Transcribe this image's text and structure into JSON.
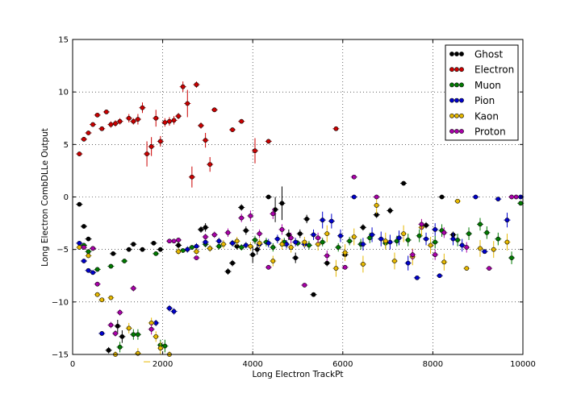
{
  "chart_data": {
    "type": "scatter",
    "title": "",
    "xlabel": "Long Electron TrackPt",
    "ylabel": "Long Electron CombDLLe Output",
    "xlim": [
      0,
      10000
    ],
    "ylim": [
      -15,
      15
    ],
    "xticks": [
      "0",
      "2000",
      "4000",
      "6000",
      "8000",
      "10000"
    ],
    "yticks": [
      "−15",
      "−10",
      "−5",
      "0",
      "5",
      "10",
      "15"
    ],
    "grid": true,
    "legend_position": "top-right",
    "series": [
      {
        "name": "Ghost",
        "color": "#000000",
        "x": [
          150,
          250,
          350,
          450,
          800,
          900,
          1000,
          1100,
          1250,
          1350,
          1550,
          1800,
          1950,
          2350,
          2850,
          2950,
          3050,
          3450,
          3550,
          3650,
          3750,
          3850,
          4000,
          4100,
          4350,
          4500,
          4650,
          4800,
          4950,
          5050,
          5200,
          5350,
          5650,
          6050,
          6450,
          6750,
          7050,
          7350,
          7850,
          8200,
          8450
        ],
        "y": [
          -0.7,
          -2.8,
          -4.0,
          -4.9,
          -14.6,
          -5.4,
          -12.3,
          -13.3,
          -5.0,
          -4.5,
          -5.0,
          -4.4,
          -5.0,
          -4.6,
          -3.1,
          -2.9,
          -4.9,
          -7.1,
          -6.3,
          -4.7,
          -1.0,
          -3.2,
          -5.5,
          -5.0,
          0.0,
          -1.2,
          -0.6,
          -3.6,
          -5.8,
          -3.5,
          -2.1,
          -9.3,
          -6.3,
          -5.5,
          -2.9,
          -1.7,
          -1.3,
          1.3,
          -2.7,
          0.0,
          -3.6
        ],
        "err": [
          0.15,
          0.2,
          0.2,
          0.2,
          0.3,
          0.2,
          0.6,
          0.6,
          0.2,
          0.2,
          0.2,
          0.2,
          0.2,
          0.3,
          0.3,
          0.4,
          0.3,
          0.3,
          0.3,
          0.3,
          0.3,
          0.4,
          0.8,
          0.5,
          0.2,
          1.2,
          1.6,
          0.5,
          0.5,
          0.4,
          0.4,
          0.2,
          0.3,
          0.3,
          0.3,
          0.3,
          0.3,
          0.2,
          0.3,
          0.2,
          0.3
        ]
      },
      {
        "name": "Electron",
        "color": "#cc0000",
        "x": [
          150,
          250,
          350,
          450,
          550,
          650,
          750,
          850,
          950,
          1050,
          1250,
          1350,
          1450,
          1550,
          1650,
          1750,
          1850,
          1950,
          2050,
          2150,
          2250,
          2350,
          2450,
          2550,
          2650,
          2750,
          2850,
          2950,
          3050,
          3150,
          3550,
          3750,
          4050,
          4350,
          5850
        ],
        "y": [
          4.1,
          5.5,
          6.1,
          6.9,
          7.8,
          6.5,
          8.1,
          6.9,
          7.0,
          7.2,
          7.5,
          7.2,
          7.4,
          8.5,
          4.1,
          4.8,
          7.5,
          5.3,
          7.1,
          7.2,
          7.3,
          7.7,
          10.5,
          8.9,
          1.9,
          10.7,
          6.8,
          5.4,
          3.1,
          8.3,
          6.4,
          7.2,
          4.4,
          5.3,
          6.5
        ],
        "err": [
          0.2,
          0.2,
          0.2,
          0.2,
          0.2,
          0.2,
          0.2,
          0.3,
          0.3,
          0.3,
          0.4,
          0.3,
          0.5,
          0.5,
          1.2,
          0.9,
          0.8,
          0.5,
          0.4,
          0.4,
          0.4,
          0.3,
          0.5,
          1.3,
          1.0,
          0.3,
          0.3,
          0.7,
          0.7,
          0.2,
          0.2,
          0.2,
          1.2,
          0.2,
          0.2
        ]
      },
      {
        "name": "Muon",
        "color": "#007a00",
        "x": [
          250,
          350,
          550,
          850,
          1050,
          1150,
          1350,
          1450,
          1850,
          1950,
          2050,
          2450,
          2650,
          2950,
          3250,
          3550,
          3750,
          4050,
          4300,
          4450,
          4700,
          5000,
          5250,
          5550,
          5900,
          6150,
          6400,
          6600,
          6950,
          7200,
          7450,
          7700,
          8050,
          8200,
          8550,
          8800,
          9050,
          9200,
          9450,
          9750,
          9950
        ],
        "y": [
          -4.6,
          -5.2,
          -6.9,
          -6.6,
          -14.3,
          -6.1,
          -13.1,
          -13.1,
          -5.4,
          -14.1,
          -14.2,
          -5.1,
          -4.8,
          -4.5,
          -4.7,
          -4.4,
          -4.8,
          -4.1,
          -4.3,
          -4.8,
          -4.3,
          -4.4,
          -4.6,
          -4.3,
          -4.8,
          -4.2,
          -4.5,
          -3.9,
          -4.4,
          -4.2,
          -4.1,
          -3.7,
          -4.3,
          -3.2,
          -4.1,
          -3.5,
          -2.6,
          -3.4,
          -4.0,
          -5.8,
          -0.6
        ],
        "err": [
          0.2,
          0.2,
          0.2,
          0.2,
          0.5,
          0.2,
          0.5,
          0.5,
          0.2,
          0.5,
          0.6,
          0.2,
          0.2,
          0.3,
          0.3,
          0.3,
          0.3,
          0.4,
          0.4,
          0.4,
          0.4,
          0.3,
          0.4,
          0.4,
          0.4,
          0.4,
          0.5,
          0.5,
          0.5,
          0.5,
          0.6,
          0.6,
          0.6,
          0.6,
          0.6,
          0.6,
          0.6,
          0.6,
          0.6,
          0.6,
          0.2
        ]
      },
      {
        "name": "Pion",
        "color": "#0000cc",
        "x": [
          150,
          250,
          350,
          450,
          650,
          1850,
          2150,
          2250,
          2550,
          2750,
          2950,
          3250,
          3550,
          3850,
          4150,
          4350,
          4550,
          4750,
          4950,
          5150,
          5350,
          5550,
          5750,
          5950,
          6250,
          6450,
          6650,
          6850,
          7050,
          7250,
          7450,
          7650,
          7850,
          8050,
          8150,
          8450,
          8650,
          8950,
          9150,
          9450,
          9650,
          9950
        ],
        "y": [
          -4.4,
          -6.1,
          -7.0,
          -7.2,
          -13.0,
          -12.0,
          -10.6,
          -10.9,
          -5.0,
          -4.7,
          -4.3,
          -4.2,
          -4.4,
          -4.6,
          -4.5,
          -4.4,
          -4.0,
          -4.5,
          -4.3,
          -4.5,
          -3.6,
          -2.2,
          -2.3,
          -3.7,
          0.0,
          -4.5,
          -3.6,
          -4.0,
          -4.3,
          -3.9,
          -6.3,
          -7.7,
          -4.0,
          -3.1,
          -7.5,
          -4.0,
          -4.6,
          0.0,
          -5.2,
          -0.2,
          -2.2,
          0.0
        ],
        "err": [
          0.2,
          0.2,
          0.2,
          0.2,
          0.2,
          0.3,
          0.3,
          0.3,
          0.3,
          0.3,
          0.3,
          0.3,
          0.3,
          0.3,
          0.4,
          0.4,
          0.4,
          0.4,
          0.4,
          0.4,
          0.5,
          0.8,
          0.7,
          0.6,
          0.2,
          0.6,
          0.7,
          0.7,
          0.7,
          0.7,
          0.7,
          0.2,
          0.6,
          0.6,
          0.2,
          0.6,
          0.6,
          0.2,
          0.2,
          0.2,
          0.7,
          0.2
        ]
      },
      {
        "name": "Kaon",
        "color": "#e6b800",
        "x": [
          150,
          350,
          550,
          650,
          850,
          950,
          1250,
          1450,
          1650,
          1750,
          1850,
          1950,
          2150,
          2350,
          2750,
          3050,
          3350,
          3650,
          3950,
          4150,
          4450,
          4650,
          4850,
          5150,
          5450,
          5650,
          5850,
          6050,
          6250,
          6450,
          6750,
          6950,
          7150,
          7350,
          7550,
          7750,
          7950,
          8250,
          8550,
          8750,
          9050,
          9350,
          9650
        ],
        "y": [
          -4.8,
          -5.6,
          -9.3,
          -9.8,
          -9.6,
          -15.0,
          -12.5,
          -14.9,
          -15.7,
          -12.0,
          -13.3,
          -14.4,
          -15.0,
          -5.2,
          -5.2,
          -4.9,
          -4.5,
          -4.2,
          -4.7,
          -4.4,
          -6.1,
          -4.5,
          -4.8,
          -4.3,
          -4.5,
          -3.5,
          -6.8,
          -5.3,
          -3.8,
          -6.4,
          -0.8,
          -4.2,
          -6.1,
          -3.5,
          -5.7,
          -2.9,
          -4.6,
          -6.2,
          -0.4,
          -6.8,
          -4.9,
          -5.0,
          -4.3
        ],
        "err": [
          0.2,
          0.2,
          0.2,
          0.2,
          0.2,
          0.3,
          0.5,
          0.5,
          0.3,
          0.5,
          0.5,
          0.6,
          0.3,
          0.3,
          0.3,
          0.3,
          0.4,
          0.4,
          0.4,
          0.4,
          0.5,
          0.5,
          0.5,
          0.5,
          0.6,
          0.8,
          0.8,
          0.8,
          0.8,
          0.8,
          0.8,
          0.8,
          0.8,
          0.8,
          0.8,
          0.8,
          0.8,
          0.8,
          0.2,
          0.2,
          0.8,
          0.8,
          0.8
        ]
      },
      {
        "name": "Proton",
        "color": "#aa00aa",
        "x": [
          250,
          450,
          550,
          850,
          950,
          1050,
          1350,
          1750,
          2150,
          2250,
          2350,
          2750,
          2950,
          3150,
          3450,
          3750,
          3950,
          4150,
          4350,
          4450,
          4650,
          4850,
          5150,
          5450,
          5650,
          6050,
          6250,
          6750,
          7550,
          7750,
          8050,
          8250,
          8750,
          9250,
          9750,
          9850
        ],
        "y": [
          -4.8,
          -4.9,
          -8.3,
          -12.2,
          -13.0,
          -11.0,
          -8.7,
          -12.6,
          -4.2,
          -4.2,
          -4.1,
          -5.8,
          -3.8,
          -3.6,
          -3.4,
          -2.0,
          -1.8,
          -3.5,
          -6.7,
          -1.6,
          -3.1,
          -3.9,
          -8.4,
          -3.9,
          -5.6,
          -6.7,
          1.9,
          0.0,
          -5.5,
          -2.6,
          -5.5,
          -3.4,
          -4.8,
          -6.8,
          0.0,
          0.0
        ],
        "err": [
          0.2,
          0.2,
          0.2,
          0.3,
          0.3,
          0.3,
          0.3,
          0.5,
          0.2,
          0.2,
          0.2,
          0.2,
          0.3,
          0.3,
          0.4,
          0.4,
          0.5,
          0.4,
          0.2,
          0.5,
          0.5,
          0.5,
          0.2,
          0.5,
          0.5,
          0.2,
          0.2,
          0.2,
          0.5,
          0.5,
          0.5,
          0.5,
          0.5,
          0.2,
          0.2,
          0.2
        ]
      }
    ]
  }
}
